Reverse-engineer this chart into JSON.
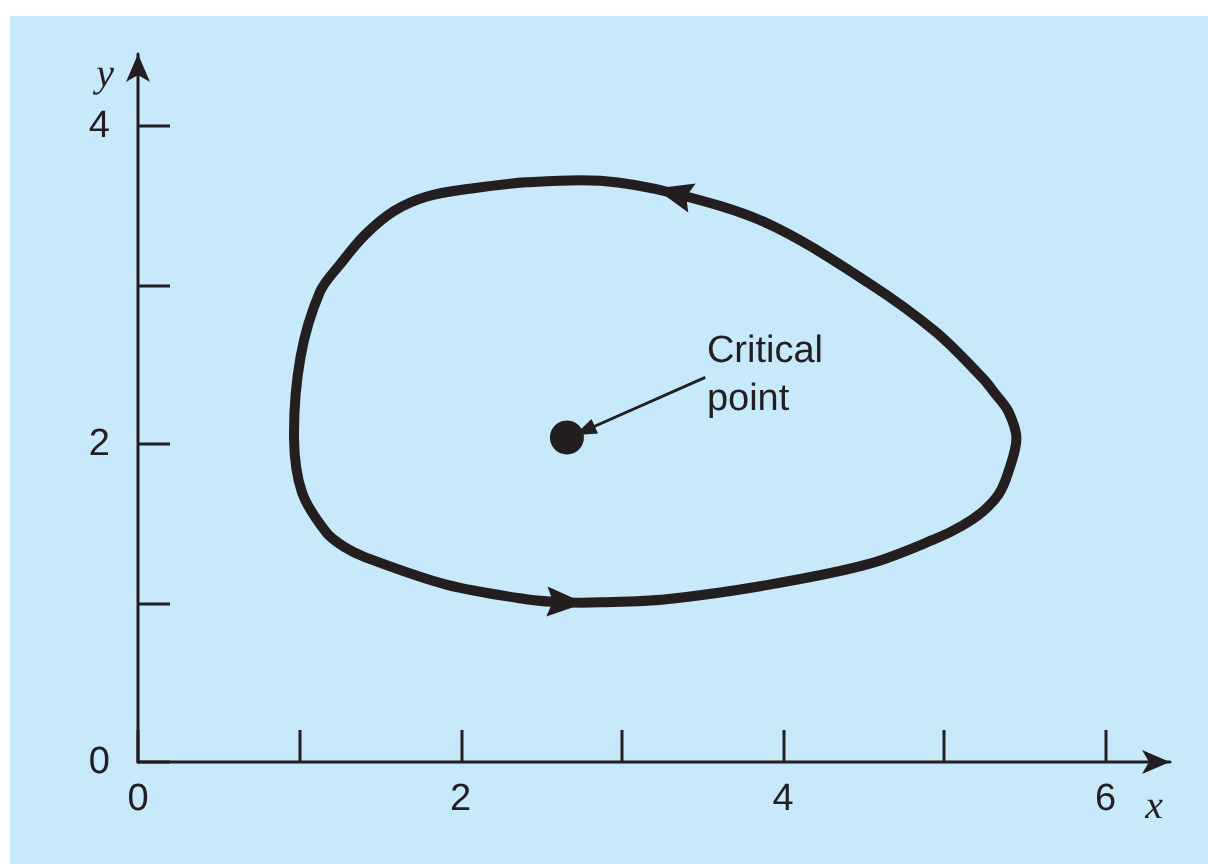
{
  "chart_data": {
    "type": "scatter",
    "xlabel": "x",
    "ylabel": "y",
    "xlim": [
      0,
      6.4
    ],
    "ylim": [
      0,
      4.45
    ],
    "xticks": [
      0,
      {
        "value": 1,
        "label": null
      },
      2,
      {
        "value": 3,
        "label": null
      },
      4,
      {
        "value": 5,
        "label": null
      },
      6
    ],
    "yticks": [
      0,
      {
        "value": 1,
        "label": null
      },
      2,
      {
        "value": 3,
        "label": null
      },
      4
    ],
    "x": [
      2.66
    ],
    "values": [
      2.04
    ],
    "color": "#231f20",
    "marker": "circle",
    "annotations": [
      {
        "text": "Critical point",
        "x": 2.66,
        "y": 2.04
      }
    ]
  }
}
